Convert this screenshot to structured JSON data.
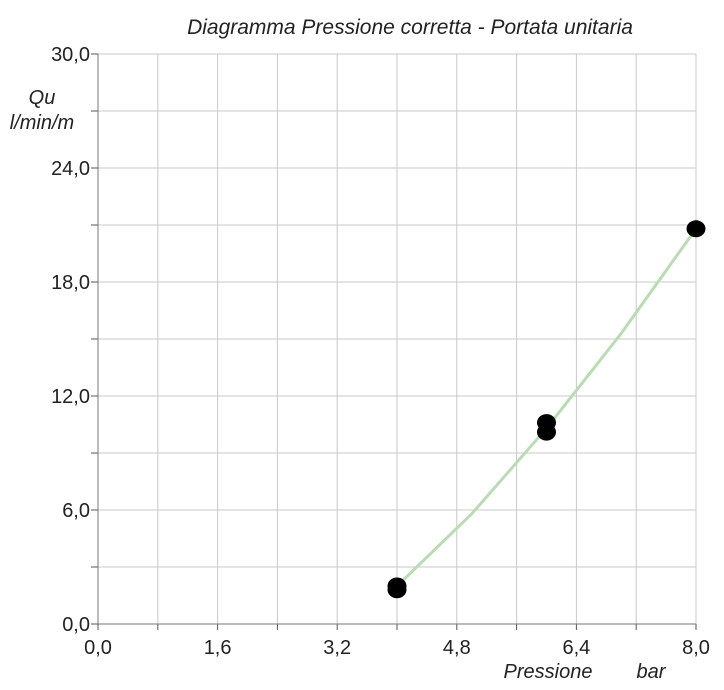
{
  "chart_data": {
    "type": "scatter",
    "title": "Diagramma  Pressione corretta - Portata unitaria",
    "xlabel_quantity": "Pressione",
    "xlabel_unit": "bar",
    "ylabel_quantity": "Qu",
    "ylabel_unit": "l/min/m",
    "xlim": [
      0,
      8
    ],
    "ylim": [
      0,
      30
    ],
    "x_ticks": [
      0,
      0.8,
      1.6,
      2.4,
      3.2,
      4.0,
      4.8,
      5.6,
      6.4,
      7.2,
      8.0
    ],
    "x_tick_labels": [
      "0,0",
      "",
      "1,6",
      "",
      "3,2",
      "",
      "4,8",
      "",
      "6,4",
      "",
      "8,0"
    ],
    "y_ticks": [
      0,
      3,
      6,
      9,
      12,
      15,
      18,
      21,
      24,
      27,
      30
    ],
    "y_tick_labels": [
      "0,0",
      "",
      "6,0",
      "",
      "12,0",
      "",
      "18,0",
      "",
      "24,0",
      "",
      "30,0"
    ],
    "grid": true,
    "series": [
      {
        "points": [
          {
            "x": 4.0,
            "y": 1.8
          },
          {
            "x": 4.0,
            "y": 2.0
          },
          {
            "x": 6.0,
            "y": 10.1
          },
          {
            "x": 6.0,
            "y": 10.6
          },
          {
            "x": 8.0,
            "y": 20.8
          }
        ],
        "marker_color": "#000000"
      }
    ],
    "fit_line": {
      "color": "#b9dcb3",
      "points": [
        {
          "x": 4.0,
          "y": 2.0
        },
        {
          "x": 5.0,
          "y": 5.8
        },
        {
          "x": 6.0,
          "y": 10.3
        },
        {
          "x": 7.0,
          "y": 15.3
        },
        {
          "x": 8.0,
          "y": 20.8
        }
      ]
    }
  }
}
